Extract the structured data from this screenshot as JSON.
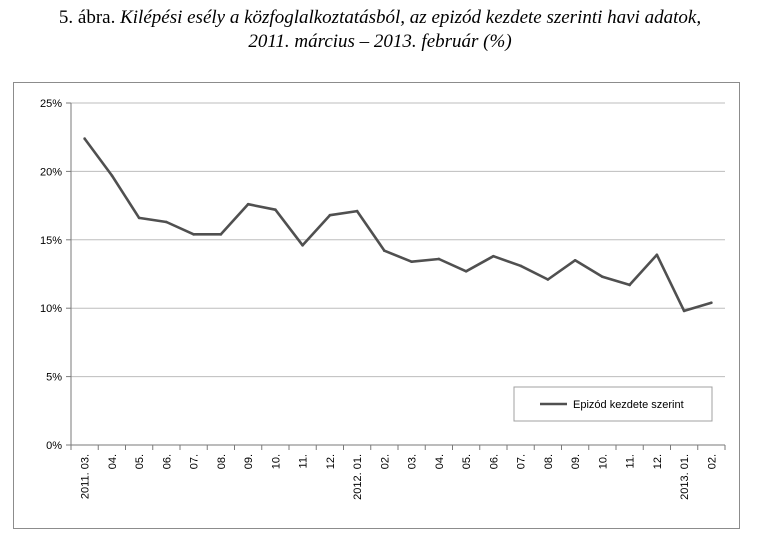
{
  "title": {
    "lead": "5. ábra.",
    "line1": "Kilépési esély a közfoglalkoztatásból, az epizód kezdete szerinti havi adatok,",
    "line2": "2011. március – 2013. február (%)"
  },
  "chart_data": {
    "type": "line",
    "categories": [
      "2011. 03.",
      "04.",
      "05.",
      "06.",
      "07.",
      "08.",
      "09.",
      "10.",
      "11.",
      "12.",
      "2012. 01.",
      "02.",
      "03.",
      "04.",
      "05.",
      "06.",
      "07.",
      "08.",
      "09.",
      "10.",
      "11.",
      "12.",
      "2013. 01.",
      "02."
    ],
    "series": [
      {
        "name": "Epizód kezdete szerint",
        "values": [
          22.4,
          19.7,
          16.6,
          16.3,
          15.4,
          15.4,
          17.6,
          17.2,
          14.6,
          16.8,
          17.1,
          14.2,
          13.4,
          13.6,
          12.7,
          13.8,
          13.1,
          12.1,
          13.5,
          12.3,
          11.7,
          13.9,
          9.8,
          10.4
        ],
        "color": "#505050"
      }
    ],
    "yticks": [
      "0%",
      "5%",
      "10%",
      "15%",
      "20%",
      "25%"
    ],
    "ylim": [
      0,
      25
    ],
    "grid": true,
    "legend": "bottom-right"
  }
}
